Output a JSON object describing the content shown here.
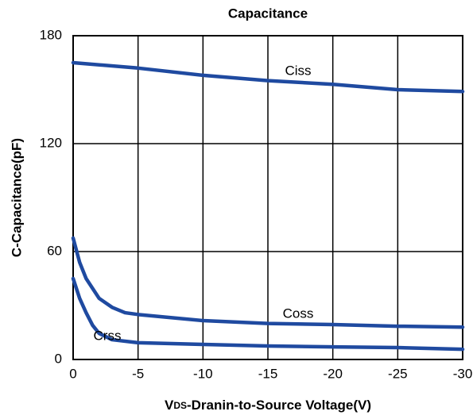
{
  "chart_data": {
    "type": "line",
    "title": "Capacitance",
    "x_label": {
      "main": "V",
      "sub": "DS",
      "rest": "-Dranin-to-Source Voltage(V)"
    },
    "y_label": "C-Capacitance(pF)",
    "xlim": [
      0,
      -30
    ],
    "xticks": [
      0,
      -5,
      -10,
      -15,
      -20,
      -25,
      -30
    ],
    "ylim": [
      0,
      180
    ],
    "yticks": [
      0,
      60,
      120,
      180
    ],
    "grid": true,
    "series": [
      {
        "name": "Ciss",
        "color": "#1f4aa0",
        "x": [
          0,
          -5,
          -10,
          -15,
          -20,
          -25,
          -30
        ],
        "values": [
          165,
          162,
          158,
          155,
          153,
          150,
          149
        ]
      },
      {
        "name": "Coss",
        "color": "#1f4aa0",
        "x": [
          0,
          -0.5,
          -1,
          -2,
          -3,
          -4,
          -5,
          -10,
          -15,
          -20,
          -25,
          -30
        ],
        "values": [
          67.5,
          54,
          45,
          34,
          29,
          26,
          25,
          21.6,
          20,
          19.4,
          18.5,
          18
        ]
      },
      {
        "name": "Crss",
        "color": "#1f4aa0",
        "x": [
          0,
          -0.5,
          -1,
          -1.5,
          -2,
          -3,
          -5,
          -10,
          -15,
          -20,
          -25,
          -30
        ],
        "values": [
          45,
          34,
          26,
          19,
          14.5,
          11,
          9.3,
          8.4,
          7.5,
          7,
          6.6,
          5.7
        ]
      }
    ]
  }
}
